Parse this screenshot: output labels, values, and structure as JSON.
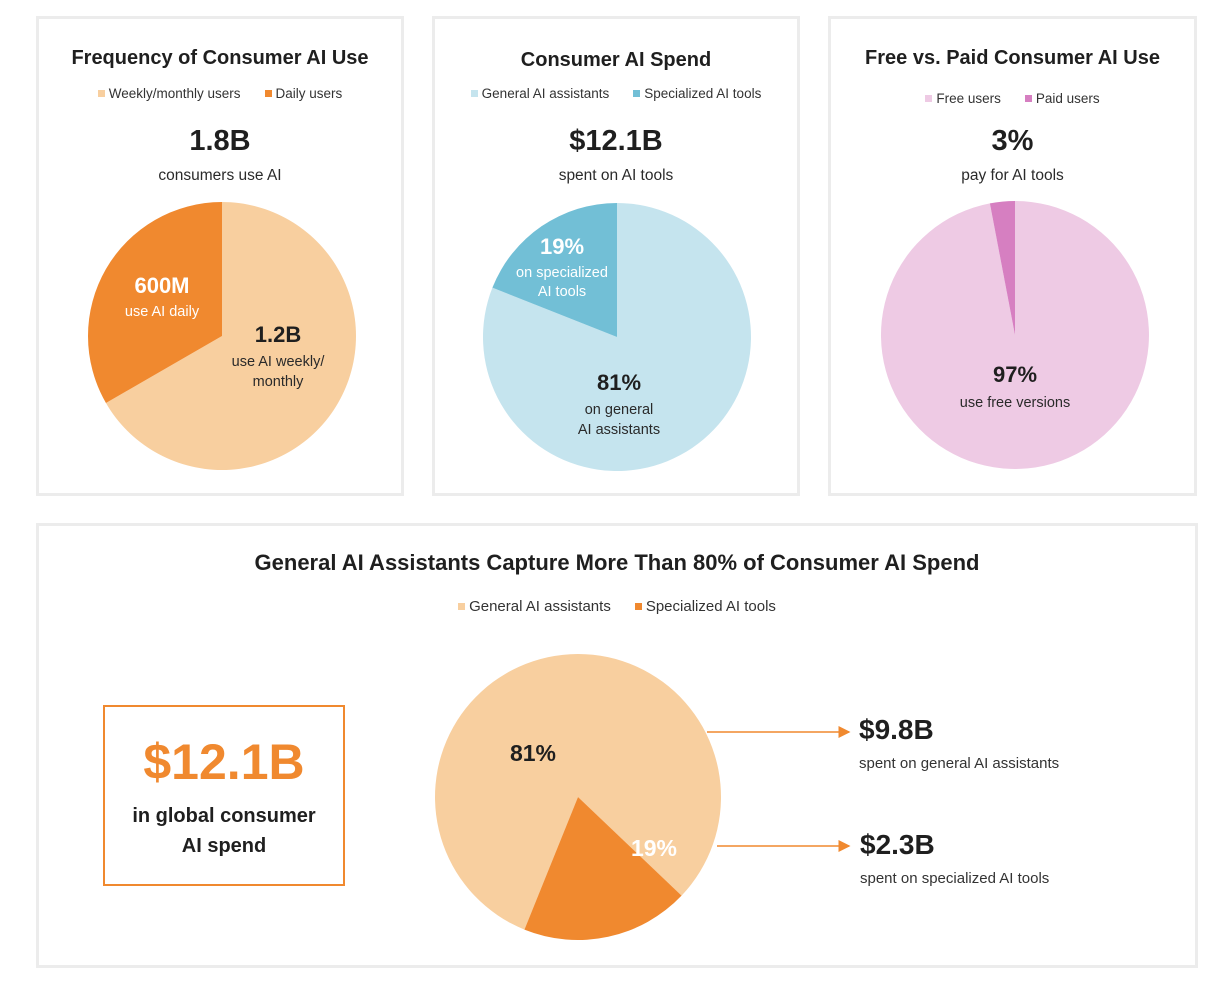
{
  "chart_data": [
    {
      "type": "pie",
      "title": "Frequency of Consumer AI Use",
      "legend": [
        "Weekly/monthly users",
        "Daily users"
      ],
      "headline_value": "1.8B",
      "headline_label": "consumers use AI",
      "slices": [
        {
          "name": "Weekly/monthly users",
          "value": 1.2,
          "label_value": "1.2B",
          "label_text_1": "use AI weekly/",
          "label_text_2": "monthly",
          "color": "#f8cf9f"
        },
        {
          "name": "Daily users",
          "value": 0.6,
          "label_value": "600M",
          "label_text_1": "use AI daily",
          "label_text_2": "",
          "color": "#f0892f"
        }
      ]
    },
    {
      "type": "pie",
      "title": "Consumer AI Spend",
      "legend": [
        "General AI assistants",
        "Specialized AI tools"
      ],
      "headline_value": "$12.1B",
      "headline_label": "spent on AI tools",
      "slices": [
        {
          "name": "General AI assistants",
          "value": 81,
          "label_value": "81%",
          "label_text_1": "on general",
          "label_text_2": "AI assistants",
          "color": "#c5e4ee"
        },
        {
          "name": "Specialized AI tools",
          "value": 19,
          "label_value": "19%",
          "label_text_1": "on specialized",
          "label_text_2": "AI tools",
          "color": "#72bfd6"
        }
      ]
    },
    {
      "type": "pie",
      "title": "Free vs. Paid Consumer AI Use",
      "legend": [
        "Free users",
        "Paid users"
      ],
      "headline_value": "3%",
      "headline_label": "pay for AI tools",
      "slices": [
        {
          "name": "Free users",
          "value": 97,
          "label_value": "97%",
          "label_text_1": "use free versions",
          "label_text_2": "",
          "color": "#eecae4"
        },
        {
          "name": "Paid users",
          "value": 3,
          "label_value": "",
          "label_text_1": "",
          "label_text_2": "",
          "color": "#d67fc1"
        }
      ]
    },
    {
      "type": "pie",
      "title": "General AI Assistants Capture More Than 80% of Consumer AI Spend",
      "legend": [
        "General AI assistants",
        "Specialized AI tools"
      ],
      "total_value": "$12.1B",
      "total_label_1": "in global consumer",
      "total_label_2": "AI spend",
      "slices": [
        {
          "name": "General AI assistants",
          "value": 81,
          "label_value": "81%",
          "callout_value": "$9.8B",
          "callout_label": "spent on general AI assistants",
          "color": "#f8cf9f"
        },
        {
          "name": "Specialized AI tools",
          "value": 19,
          "label_value": "19%",
          "callout_value": "$2.3B",
          "callout_label": "spent on specialized AI tools",
          "color": "#f0892f"
        }
      ]
    }
  ]
}
